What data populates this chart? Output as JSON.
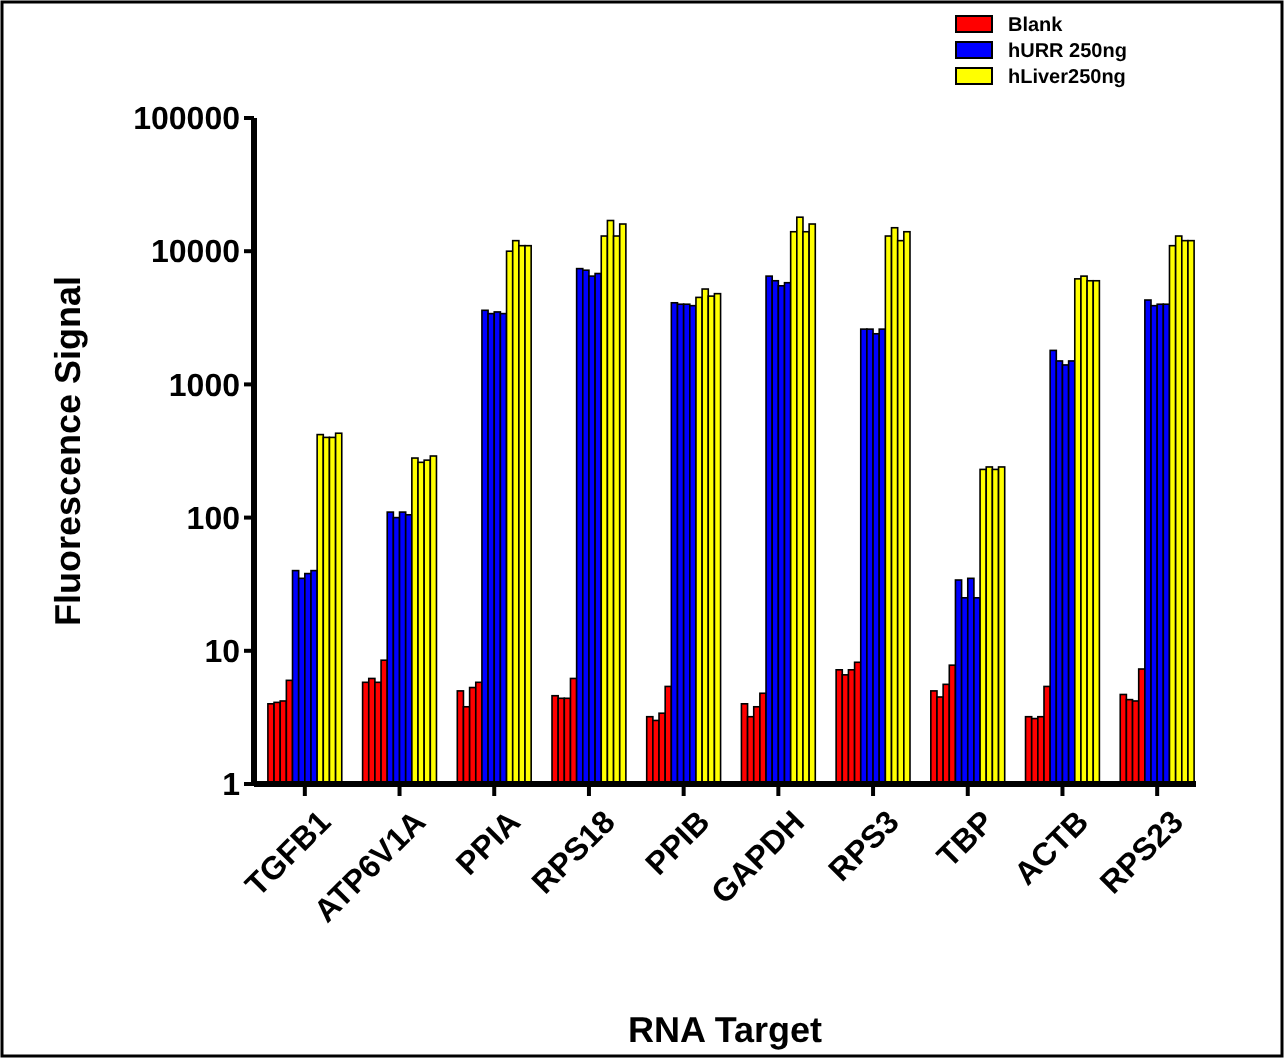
{
  "chart_data": {
    "type": "bar",
    "xlabel": "RNA Target",
    "ylabel": "Fluorescence Signal",
    "log": "y",
    "ylim": [
      1,
      100000
    ],
    "yticks": [
      1,
      10,
      100,
      1000,
      10000,
      100000
    ],
    "legend": "top right",
    "grid": false,
    "categories": [
      "TGFB1",
      "ATP6V1A",
      "PPIA",
      "RPS18",
      "PPIB",
      "GAPDH",
      "RPS3",
      "TBP",
      "ACTB",
      "RPS23"
    ],
    "series": [
      {
        "name": "Blank",
        "color": "#ff0000",
        "values": [
          4,
          5.8,
          5,
          4.6,
          3.2,
          4,
          7.2,
          5,
          3.2,
          4.7
        ]
      },
      {
        "color": "#ff0000",
        "values": [
          4.1,
          6.2,
          3.8,
          4.4,
          3,
          3.2,
          6.6,
          4.5,
          3.1,
          4.3
        ]
      },
      {
        "color": "#ff0000",
        "values": [
          4.2,
          5.8,
          5.3,
          4.4,
          3.4,
          3.8,
          7.2,
          5.6,
          3.2,
          4.2
        ]
      },
      {
        "color": "#ff0000",
        "values": [
          6,
          8.5,
          5.8,
          6.2,
          5.4,
          4.8,
          8.2,
          7.8,
          5.4,
          7.3
        ]
      },
      {
        "name": "hURR 250ng",
        "color": "#0000ff",
        "values": [
          40,
          110,
          3600,
          7400,
          4100,
          6500,
          2600,
          34,
          1800,
          4300
        ]
      },
      {
        "color": "#0000ff",
        "values": [
          35,
          100,
          3400,
          7200,
          4000,
          6000,
          2600,
          25,
          1500,
          3900
        ]
      },
      {
        "color": "#0000ff",
        "values": [
          38,
          110,
          3500,
          6500,
          4000,
          5500,
          2400,
          35,
          1400,
          4000
        ]
      },
      {
        "color": "#0000ff",
        "values": [
          40,
          105,
          3400,
          6800,
          3900,
          5800,
          2600,
          25,
          1500,
          4000
        ]
      },
      {
        "name": "hLiver250ng",
        "color": "#ffff00",
        "values": [
          420,
          280,
          10000,
          13000,
          4500,
          14000,
          13000,
          230,
          6200,
          11000
        ]
      },
      {
        "color": "#ffff00",
        "values": [
          400,
          260,
          12000,
          17000,
          5200,
          18000,
          15000,
          240,
          6500,
          13000
        ]
      },
      {
        "color": "#ffff00",
        "values": [
          400,
          270,
          11000,
          13000,
          4600,
          14000,
          12000,
          230,
          6000,
          12000
        ]
      },
      {
        "color": "#ffff00",
        "values": [
          430,
          290,
          11000,
          16000,
          4800,
          16000,
          14000,
          240,
          6000,
          12000
        ]
      }
    ]
  }
}
